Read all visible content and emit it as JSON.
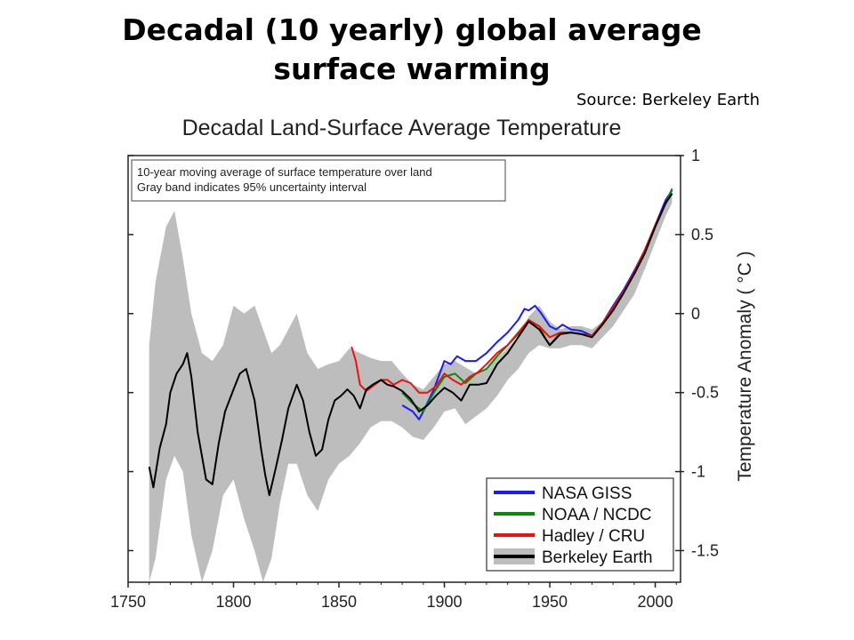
{
  "slide": {
    "title_line1": "Decadal (10 yearly) global average",
    "title_line2": "surface warming",
    "source": "Source: Berkeley Earth"
  },
  "chart_data": {
    "type": "line",
    "title": "Decadal Land-Surface Average Temperature",
    "annotation_lines": [
      "10-year moving average of surface temperature over land",
      "Gray band indicates 95% uncertainty interval"
    ],
    "xlabel": "",
    "ylabel": "Temperature Anomaly ( °C )",
    "xlim": [
      1750,
      2012
    ],
    "ylim": [
      -1.7,
      1.0
    ],
    "x_ticks": [
      1750,
      1800,
      1850,
      1900,
      1950,
      2000
    ],
    "x_tick_labels": [
      "1750",
      "1800",
      "1850",
      "1900",
      "1950",
      "2000"
    ],
    "y_ticks": [
      1,
      0.5,
      0,
      -0.5,
      -1,
      -1.5
    ],
    "y_tick_labels": [
      "1",
      "0.5",
      "0",
      "-0.5",
      "-1",
      "-1.5"
    ],
    "grid": false,
    "legend_position": "bottom-right",
    "uncertainty_band": {
      "name": "Berkeley Earth 95% uncertainty",
      "color": "#bdbdbd",
      "x": [
        1760,
        1763,
        1768,
        1772,
        1776,
        1780,
        1785,
        1790,
        1795,
        1800,
        1805,
        1810,
        1814,
        1818,
        1822,
        1826,
        1830,
        1835,
        1840,
        1845,
        1850,
        1855,
        1860,
        1865,
        1870,
        1875,
        1880,
        1885,
        1890,
        1895,
        1900,
        1905,
        1910,
        1915,
        1920,
        1925,
        1930,
        1935,
        1940,
        1945,
        1950,
        1955,
        1960,
        1965,
        1970,
        1975,
        1980,
        1985,
        1990,
        1995,
        2000,
        2005,
        2008
      ],
      "lower": [
        -1.7,
        -1.55,
        -1.05,
        -0.9,
        -1.0,
        -1.4,
        -1.7,
        -1.5,
        -1.15,
        -1.05,
        -1.3,
        -1.5,
        -1.7,
        -1.55,
        -1.2,
        -0.95,
        -0.95,
        -1.15,
        -1.25,
        -1.05,
        -0.95,
        -0.9,
        -0.82,
        -0.72,
        -0.68,
        -0.68,
        -0.72,
        -0.78,
        -0.8,
        -0.72,
        -0.62,
        -0.6,
        -0.7,
        -0.65,
        -0.6,
        -0.52,
        -0.42,
        -0.35,
        -0.25,
        -0.2,
        -0.22,
        -0.22,
        -0.2,
        -0.2,
        -0.22,
        -0.15,
        -0.08,
        0.02,
        0.12,
        0.28,
        0.45,
        0.62,
        0.7
      ],
      "upper": [
        -0.2,
        0.2,
        0.55,
        0.65,
        0.35,
        0.0,
        -0.25,
        -0.3,
        -0.2,
        0.05,
        0.0,
        0.05,
        -0.1,
        -0.25,
        -0.2,
        -0.1,
        0.0,
        -0.25,
        -0.35,
        -0.32,
        -0.3,
        -0.22,
        -0.25,
        -0.28,
        -0.3,
        -0.3,
        -0.38,
        -0.45,
        -0.48,
        -0.4,
        -0.32,
        -0.3,
        -0.34,
        -0.38,
        -0.35,
        -0.28,
        -0.22,
        -0.15,
        -0.02,
        0.05,
        -0.05,
        -0.1,
        -0.08,
        -0.08,
        -0.1,
        -0.05,
        0.05,
        0.12,
        0.25,
        0.38,
        0.55,
        0.72,
        0.8
      ]
    },
    "series": [
      {
        "name": "NASA GISS",
        "color": "#1a1aff",
        "x": [
          1880,
          1885,
          1888,
          1890,
          1895,
          1900,
          1903,
          1906,
          1910,
          1915,
          1920,
          1925,
          1930,
          1935,
          1938,
          1940,
          1943,
          1946,
          1950,
          1953,
          1956,
          1960,
          1965,
          1970,
          1975,
          1980,
          1985,
          1990,
          1995,
          2000,
          2005,
          2008
        ],
        "values": [
          -0.58,
          -0.62,
          -0.67,
          -0.62,
          -0.48,
          -0.3,
          -0.32,
          -0.27,
          -0.3,
          -0.3,
          -0.25,
          -0.18,
          -0.12,
          -0.04,
          0.03,
          0.02,
          0.05,
          0.0,
          -0.08,
          -0.1,
          -0.07,
          -0.1,
          -0.11,
          -0.14,
          -0.06,
          0.05,
          0.15,
          0.27,
          0.4,
          0.56,
          0.72,
          0.78
        ]
      },
      {
        "name": "NOAA / NCDC",
        "color": "#0a8a0a",
        "x": [
          1880,
          1885,
          1890,
          1895,
          1900,
          1905,
          1910,
          1915,
          1920,
          1925,
          1930,
          1935,
          1940,
          1945,
          1948,
          1950,
          1955,
          1960,
          1965,
          1970,
          1975,
          1980,
          1985,
          1990,
          1995,
          2000,
          2005,
          2008
        ],
        "values": [
          -0.5,
          -0.57,
          -0.62,
          -0.5,
          -0.4,
          -0.38,
          -0.44,
          -0.38,
          -0.35,
          -0.27,
          -0.2,
          -0.13,
          -0.05,
          -0.08,
          -0.16,
          -0.2,
          -0.12,
          -0.12,
          -0.13,
          -0.14,
          -0.06,
          0.04,
          0.14,
          0.25,
          0.38,
          0.55,
          0.7,
          0.79
        ]
      },
      {
        "name": "Hadley / CRU",
        "color": "#ee1111",
        "x": [
          1856,
          1858,
          1860,
          1863,
          1866,
          1870,
          1873,
          1876,
          1880,
          1884,
          1888,
          1892,
          1896,
          1900,
          1904,
          1908,
          1912,
          1916,
          1920,
          1925,
          1930,
          1935,
          1940,
          1945,
          1950,
          1955,
          1960,
          1965,
          1970,
          1975,
          1980,
          1985,
          1990,
          1995,
          2000,
          2005,
          2008
        ],
        "values": [
          -0.21,
          -0.3,
          -0.45,
          -0.49,
          -0.46,
          -0.42,
          -0.42,
          -0.45,
          -0.42,
          -0.44,
          -0.5,
          -0.5,
          -0.46,
          -0.38,
          -0.42,
          -0.45,
          -0.4,
          -0.37,
          -0.32,
          -0.25,
          -0.2,
          -0.12,
          -0.04,
          -0.08,
          -0.15,
          -0.12,
          -0.12,
          -0.13,
          -0.14,
          -0.06,
          0.04,
          0.14,
          0.26,
          0.4,
          0.56,
          0.7,
          0.76
        ]
      },
      {
        "name": "Berkeley Earth",
        "color": "#000000",
        "x": [
          1760,
          1762,
          1765,
          1768,
          1770,
          1773,
          1776,
          1778,
          1780,
          1783,
          1787,
          1790,
          1793,
          1796,
          1800,
          1803,
          1806,
          1810,
          1813,
          1815,
          1817,
          1820,
          1823,
          1826,
          1830,
          1833,
          1836,
          1839,
          1842,
          1845,
          1848,
          1851,
          1854,
          1857,
          1860,
          1863,
          1866,
          1870,
          1873,
          1876,
          1880,
          1884,
          1888,
          1892,
          1896,
          1900,
          1904,
          1908,
          1912,
          1916,
          1920,
          1925,
          1930,
          1935,
          1940,
          1945,
          1950,
          1955,
          1960,
          1965,
          1970,
          1975,
          1980,
          1985,
          1990,
          1995,
          2000,
          2005,
          2008
        ],
        "values": [
          -0.97,
          -1.1,
          -0.85,
          -0.7,
          -0.5,
          -0.38,
          -0.32,
          -0.25,
          -0.4,
          -0.75,
          -1.05,
          -1.08,
          -0.82,
          -0.62,
          -0.48,
          -0.38,
          -0.35,
          -0.55,
          -0.85,
          -1.02,
          -1.15,
          -0.98,
          -0.8,
          -0.6,
          -0.45,
          -0.55,
          -0.75,
          -0.9,
          -0.86,
          -0.67,
          -0.55,
          -0.52,
          -0.48,
          -0.52,
          -0.6,
          -0.48,
          -0.45,
          -0.42,
          -0.45,
          -0.46,
          -0.49,
          -0.54,
          -0.62,
          -0.58,
          -0.52,
          -0.47,
          -0.5,
          -0.55,
          -0.45,
          -0.45,
          -0.44,
          -0.32,
          -0.25,
          -0.15,
          -0.05,
          -0.1,
          -0.2,
          -0.13,
          -0.12,
          -0.13,
          -0.15,
          -0.07,
          0.02,
          0.13,
          0.25,
          0.38,
          0.55,
          0.7,
          0.76
        ]
      }
    ]
  }
}
